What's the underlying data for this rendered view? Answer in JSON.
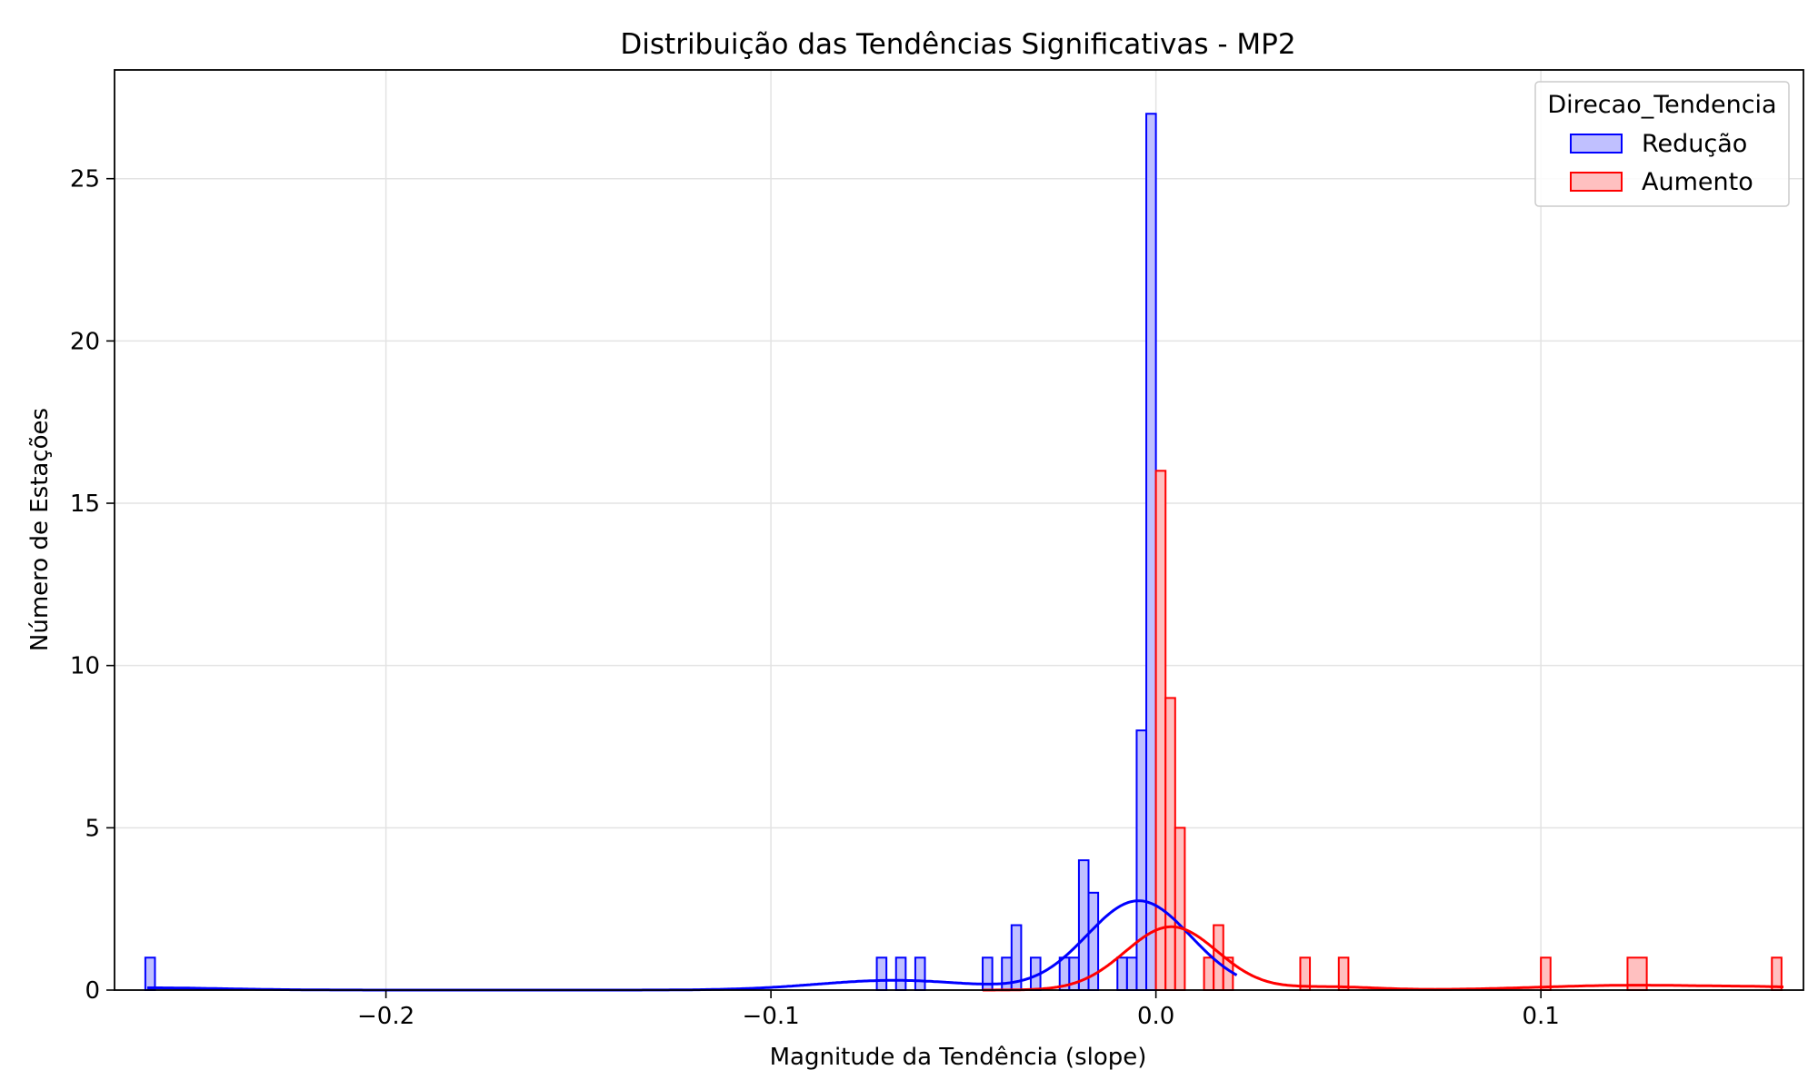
{
  "chart_data": {
    "type": "histogram",
    "title": "Distribuição das Tendências Significativas - MP2",
    "xlabel": "Magnitude da Tendência (slope)",
    "ylabel": "Número de Estações",
    "xlim": [
      -0.2705,
      0.1682
    ],
    "ylim": [
      0,
      28.35
    ],
    "x_ticks": [
      {
        "value": -0.2,
        "label": "−0.2"
      },
      {
        "value": -0.1,
        "label": "−0.1"
      },
      {
        "value": 0.0,
        "label": "0.0"
      },
      {
        "value": 0.1,
        "label": "0.1"
      }
    ],
    "y_ticks": [
      {
        "value": 0,
        "label": "0"
      },
      {
        "value": 5,
        "label": "5"
      },
      {
        "value": 10,
        "label": "10"
      },
      {
        "value": 15,
        "label": "15"
      },
      {
        "value": 20,
        "label": "20"
      },
      {
        "value": 25,
        "label": "25"
      }
    ],
    "grid": true,
    "legend": {
      "title": "Direcao_Tendencia",
      "position": "top-right"
    },
    "series": [
      {
        "name": "Redução",
        "color": "#0000ff",
        "fill": "#c0c0ff",
        "bins": [
          {
            "x0": -0.2625,
            "x1": -0.26,
            "count": 1
          },
          {
            "x0": -0.0725,
            "x1": -0.07,
            "count": 1
          },
          {
            "x0": -0.0675,
            "x1": -0.065,
            "count": 1
          },
          {
            "x0": -0.0625,
            "x1": -0.06,
            "count": 1
          },
          {
            "x0": -0.045,
            "x1": -0.0425,
            "count": 1
          },
          {
            "x0": -0.04,
            "x1": -0.0375,
            "count": 1
          },
          {
            "x0": -0.0375,
            "x1": -0.035,
            "count": 2
          },
          {
            "x0": -0.0325,
            "x1": -0.03,
            "count": 1
          },
          {
            "x0": -0.025,
            "x1": -0.0225,
            "count": 1
          },
          {
            "x0": -0.0225,
            "x1": -0.02,
            "count": 1
          },
          {
            "x0": -0.02,
            "x1": -0.0175,
            "count": 4
          },
          {
            "x0": -0.0175,
            "x1": -0.015,
            "count": 3
          },
          {
            "x0": -0.01,
            "x1": -0.0075,
            "count": 1
          },
          {
            "x0": -0.0075,
            "x1": -0.005,
            "count": 1
          },
          {
            "x0": -0.005,
            "x1": -0.0025,
            "count": 8
          },
          {
            "x0": -0.0025,
            "x1": 0.0,
            "count": 27
          }
        ],
        "kde": {
          "mean": -0.0045,
          "std": 0.0135,
          "peak": 2.75,
          "tail_left": -0.262,
          "tail_right": 0.021
        }
      },
      {
        "name": "Aumento",
        "color": "#ff0000",
        "fill": "#ffc0c0",
        "bins": [
          {
            "x0": 0.0,
            "x1": 0.0025,
            "count": 16
          },
          {
            "x0": 0.0025,
            "x1": 0.005,
            "count": 9
          },
          {
            "x0": 0.005,
            "x1": 0.0075,
            "count": 5
          },
          {
            "x0": 0.0125,
            "x1": 0.015,
            "count": 1
          },
          {
            "x0": 0.015,
            "x1": 0.0175,
            "count": 2
          },
          {
            "x0": 0.0175,
            "x1": 0.02,
            "count": 1
          },
          {
            "x0": 0.0375,
            "x1": 0.04,
            "count": 1
          },
          {
            "x0": 0.0475,
            "x1": 0.05,
            "count": 1
          },
          {
            "x0": 0.1,
            "x1": 0.1025,
            "count": 1
          },
          {
            "x0": 0.1225,
            "x1": 0.1275,
            "count": 1
          },
          {
            "x0": 0.16,
            "x1": 0.1625,
            "count": 1
          }
        ],
        "kde": {
          "mean": 0.004,
          "std": 0.012,
          "peak": 1.95,
          "tail_left": -0.045,
          "tail_right": 0.163
        }
      }
    ]
  }
}
